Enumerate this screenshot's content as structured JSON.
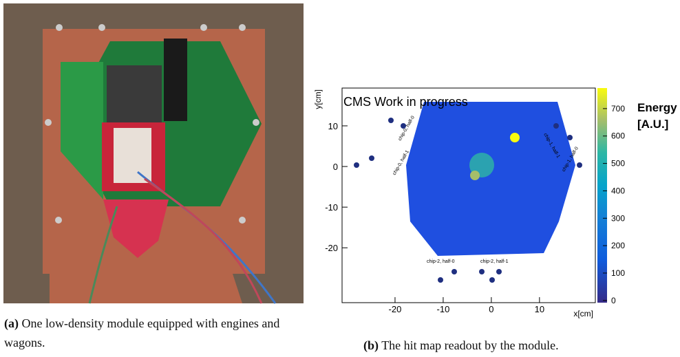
{
  "captions": [
    {
      "label": "(a)",
      "text": "One low-density module equipped with engines and wagons."
    },
    {
      "label": "(b)",
      "text": "The hit map readout by the module."
    }
  ],
  "chart_data": {
    "type": "hitmap",
    "title": "CMS Work in progress",
    "x_label": "x[cm]",
    "y_label": "y[cm]",
    "xlim": [
      -31,
      21.6
    ],
    "ylim": [
      -33.5,
      19.3
    ],
    "xticks": [
      -20,
      -10,
      0,
      10
    ],
    "yticks": [
      -20,
      -10,
      0,
      10
    ],
    "colorbar": {
      "title": [
        "Energy",
        "[A.U.]"
      ],
      "lim": [
        -8,
        775
      ],
      "ticks": [
        0,
        100,
        200,
        300,
        400,
        500,
        600,
        700
      ]
    },
    "annotations": [
      "chip-2, half-0",
      "chip-2, half-1",
      "chip-0, half-0",
      "chip-0, half-1",
      "chip-1, half-0",
      "chip-1, half-1"
    ]
  }
}
